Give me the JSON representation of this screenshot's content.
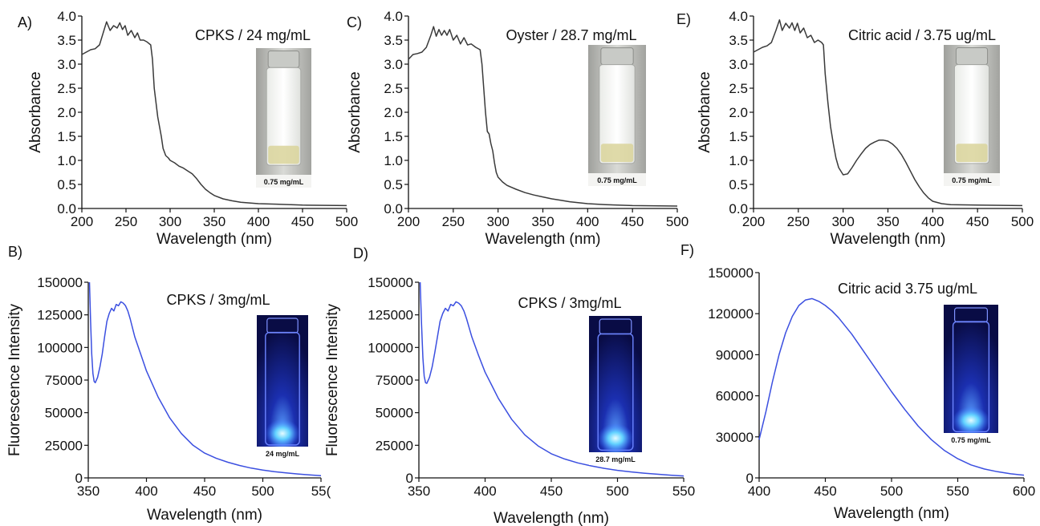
{
  "colors": {
    "absorbance_line": "#3a3a3a",
    "fluorescence_line": "#3b4fe0",
    "axis": "#111111"
  },
  "chart_data": [
    {
      "type": "line",
      "panel_label": "A)",
      "title": "CPKS / 24 mg/mL",
      "xlabel": "Wavelength (nm)",
      "ylabel": "Absorbance",
      "xlim": [
        200,
        500
      ],
      "ylim": [
        0.0,
        4.0
      ],
      "xticks": [
        "200",
        "250",
        "300",
        "350",
        "400",
        "450",
        "500"
      ],
      "yticks": [
        "0.0",
        "0.5",
        "1.0",
        "1.5",
        "2.0",
        "2.5",
        "3.0",
        "3.5",
        "4.0"
      ],
      "inset": {
        "label": "0.75 mg/mL",
        "kind": "vial-daylight"
      },
      "series": [
        {
          "x": [
            200,
            205,
            210,
            215,
            220,
            225,
            228,
            232,
            236,
            240,
            243,
            246,
            249,
            252,
            256,
            260,
            263,
            266,
            270,
            274,
            278,
            280,
            282,
            284,
            286,
            288,
            290,
            292,
            295,
            298,
            300,
            305,
            310,
            315,
            320,
            325,
            330,
            335,
            340,
            345,
            350,
            360,
            370,
            380,
            400,
            420,
            450,
            500
          ],
          "y": [
            3.2,
            3.25,
            3.3,
            3.32,
            3.4,
            3.7,
            3.88,
            3.7,
            3.8,
            3.75,
            3.86,
            3.72,
            3.8,
            3.6,
            3.7,
            3.55,
            3.65,
            3.5,
            3.5,
            3.46,
            3.4,
            3.1,
            2.5,
            2.2,
            1.9,
            1.7,
            1.5,
            1.25,
            1.1,
            1.05,
            1.0,
            0.95,
            0.88,
            0.84,
            0.78,
            0.72,
            0.62,
            0.5,
            0.4,
            0.33,
            0.27,
            0.2,
            0.16,
            0.13,
            0.1,
            0.09,
            0.07,
            0.06
          ]
        }
      ]
    },
    {
      "type": "line",
      "panel_label": "C)",
      "title": "Oyster / 28.7 mg/mL",
      "xlabel": "Wavelength (nm)",
      "ylabel": "Absorbance",
      "xlim": [
        200,
        500
      ],
      "ylim": [
        0.0,
        4.0
      ],
      "xticks": [
        "200",
        "250",
        "300",
        "350",
        "400",
        "450",
        "500"
      ],
      "yticks": [
        "0.0",
        "0.5",
        "1.0",
        "1.5",
        "2.0",
        "2.5",
        "3.0",
        "3.5",
        "4.0"
      ],
      "inset": {
        "label": "0.75 mg/mL",
        "kind": "vial-daylight"
      },
      "series": [
        {
          "x": [
            200,
            205,
            210,
            215,
            220,
            225,
            228,
            231,
            234,
            237,
            240,
            243,
            246,
            250,
            254,
            258,
            262,
            266,
            270,
            275,
            280,
            282,
            284,
            286,
            288,
            290,
            292,
            294,
            296,
            298,
            300,
            305,
            310,
            320,
            330,
            340,
            350,
            360,
            370,
            380,
            400,
            420,
            450,
            500
          ],
          "y": [
            3.1,
            3.2,
            3.22,
            3.25,
            3.35,
            3.6,
            3.78,
            3.58,
            3.72,
            3.6,
            3.7,
            3.6,
            3.72,
            3.5,
            3.6,
            3.42,
            3.55,
            3.4,
            3.42,
            3.35,
            3.3,
            3.0,
            2.5,
            2.0,
            1.6,
            1.55,
            1.35,
            1.2,
            0.95,
            0.75,
            0.65,
            0.55,
            0.48,
            0.4,
            0.33,
            0.28,
            0.24,
            0.2,
            0.17,
            0.14,
            0.1,
            0.08,
            0.06,
            0.05
          ]
        }
      ]
    },
    {
      "type": "line",
      "panel_label": "E)",
      "title": "Citric acid / 3.75 ug/mL",
      "xlabel": "Wavelength (nm)",
      "ylabel": "Absorbance",
      "xlim": [
        200,
        500
      ],
      "ylim": [
        0.0,
        4.0
      ],
      "xticks": [
        "200",
        "250",
        "300",
        "350",
        "400",
        "450",
        "500"
      ],
      "yticks": [
        "0.0",
        "0.5",
        "1.0",
        "1.5",
        "2.0",
        "2.5",
        "3.0",
        "3.5",
        "4.0"
      ],
      "inset": {
        "label": "0.75 mg/mL",
        "kind": "vial-daylight"
      },
      "series": [
        {
          "x": [
            200,
            205,
            210,
            215,
            220,
            225,
            229,
            232,
            236,
            240,
            243,
            246,
            249,
            252,
            256,
            260,
            264,
            268,
            272,
            276,
            278,
            280,
            283,
            286,
            289,
            292,
            295,
            300,
            305,
            310,
            315,
            320,
            325,
            330,
            335,
            340,
            345,
            350,
            355,
            360,
            365,
            370,
            375,
            380,
            385,
            390,
            395,
            400,
            410,
            420,
            450,
            500
          ],
          "y": [
            3.25,
            3.3,
            3.35,
            3.38,
            3.45,
            3.7,
            3.92,
            3.7,
            3.85,
            3.75,
            3.86,
            3.7,
            3.85,
            3.65,
            3.75,
            3.55,
            3.6,
            3.45,
            3.5,
            3.45,
            3.4,
            2.8,
            2.2,
            1.7,
            1.35,
            1.05,
            0.85,
            0.7,
            0.72,
            0.85,
            1.0,
            1.13,
            1.25,
            1.33,
            1.38,
            1.42,
            1.42,
            1.4,
            1.34,
            1.25,
            1.12,
            0.96,
            0.78,
            0.6,
            0.45,
            0.32,
            0.22,
            0.15,
            0.1,
            0.08,
            0.07,
            0.06
          ]
        }
      ]
    },
    {
      "type": "line",
      "panel_label": "B)",
      "title": "CPKS / 3mg/mL",
      "xlabel": "Wavelength (nm)",
      "ylabel": "Fluorescence Intensity",
      "xlim": [
        350,
        550
      ],
      "ylim": [
        0,
        150000
      ],
      "xticks": [
        "350",
        "400",
        "450",
        "500",
        "55("
      ],
      "yticks": [
        "0",
        "25000",
        "50000",
        "75000",
        "100000",
        "125000",
        "150000"
      ],
      "inset": {
        "label": "24 mg/mL",
        "kind": "vial-uv"
      },
      "series": [
        {
          "x": [
            351,
            352,
            353,
            354,
            355,
            356,
            358,
            360,
            362,
            364,
            366,
            368,
            370,
            372,
            374,
            376,
            378,
            380,
            382,
            384,
            386,
            388,
            390,
            395,
            400,
            405,
            410,
            420,
            430,
            440,
            450,
            460,
            470,
            480,
            490,
            500,
            510,
            520,
            530,
            540,
            550
          ],
          "y": [
            150000,
            120000,
            95000,
            80000,
            74000,
            73000,
            77000,
            85000,
            95000,
            108000,
            120000,
            126000,
            130000,
            128000,
            133000,
            132000,
            135000,
            134000,
            132000,
            128000,
            122000,
            115000,
            108000,
            95000,
            82000,
            72000,
            62000,
            46000,
            34000,
            25000,
            19000,
            15000,
            12000,
            9500,
            7500,
            6000,
            4800,
            3800,
            3000,
            2300,
            1700
          ]
        }
      ]
    },
    {
      "type": "line",
      "panel_label": "D)",
      "title": "CPKS / 3mg/mL",
      "xlabel": "Wavelength (nm)",
      "ylabel": "Fluorescence Intensity",
      "xlim": [
        350,
        550
      ],
      "ylim": [
        0,
        150000
      ],
      "xticks": [
        "350",
        "400",
        "450",
        "500",
        "550"
      ],
      "yticks": [
        "0",
        "25000",
        "50000",
        "75000",
        "100000",
        "125000",
        "150000"
      ],
      "inset": {
        "label": "28.7 mg/mL",
        "kind": "vial-uv"
      },
      "series": [
        {
          "x": [
            351,
            352,
            353,
            354,
            355,
            356,
            358,
            360,
            362,
            364,
            366,
            368,
            370,
            372,
            374,
            376,
            378,
            380,
            382,
            384,
            386,
            388,
            390,
            395,
            400,
            405,
            410,
            420,
            430,
            440,
            450,
            460,
            470,
            480,
            490,
            500,
            510,
            520,
            530,
            540,
            550
          ],
          "y": [
            150000,
            118000,
            92000,
            78000,
            73000,
            72500,
            77000,
            85000,
            96000,
            108000,
            120000,
            126000,
            130000,
            128000,
            133000,
            132000,
            135000,
            134000,
            132000,
            128000,
            122000,
            115000,
            108000,
            94000,
            81000,
            71000,
            61000,
            45000,
            33000,
            24500,
            18500,
            14500,
            11500,
            9200,
            7300,
            5800,
            4600,
            3600,
            2800,
            2100,
            1500
          ]
        }
      ]
    },
    {
      "type": "line",
      "panel_label": "F)",
      "title": "Citric acid 3.75 ug/mL",
      "xlabel": "Wavelength (nm)",
      "ylabel": "",
      "xlim": [
        400,
        600
      ],
      "ylim": [
        0,
        150000
      ],
      "xticks": [
        "400",
        "450",
        "500",
        "550",
        "600"
      ],
      "yticks": [
        "0",
        "30000",
        "60000",
        "90000",
        "120000",
        "150000"
      ],
      "inset": {
        "label": "0.75 mg/mL",
        "kind": "vial-uv"
      },
      "series": [
        {
          "x": [
            400,
            405,
            410,
            415,
            420,
            425,
            430,
            435,
            440,
            445,
            450,
            455,
            460,
            470,
            480,
            490,
            500,
            510,
            520,
            530,
            540,
            550,
            560,
            570,
            580,
            590,
            600
          ],
          "y": [
            28000,
            48000,
            70000,
            90000,
            106000,
            118000,
            126000,
            130000,
            131000,
            129000,
            126000,
            122000,
            117000,
            105000,
            91000,
            77000,
            63000,
            50000,
            38000,
            28000,
            20000,
            14000,
            9500,
            6500,
            4500,
            3000,
            2000
          ]
        }
      ]
    }
  ]
}
